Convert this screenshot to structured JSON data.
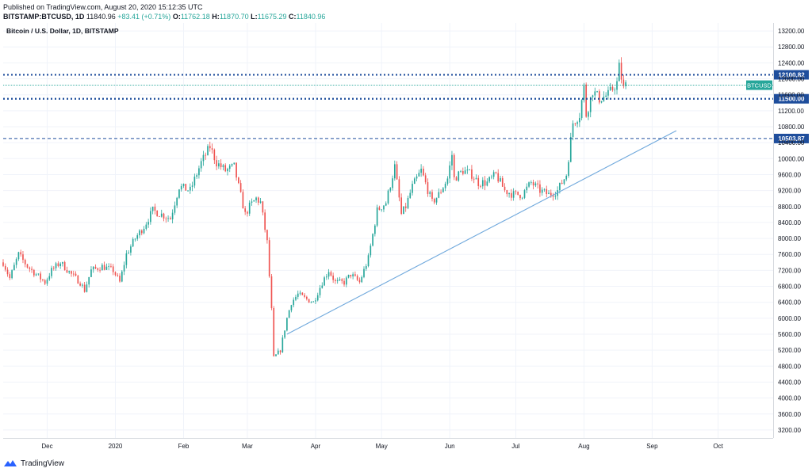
{
  "header": {
    "published": "Published on TradingView.com, August 20, 2020 15:12:35 UTC",
    "symbol": "BITSTAMP:BTCUSD, 1D",
    "last": "11840.96",
    "change": "+83.41 (+0.71%)",
    "o_label": "O:",
    "o": "11762.18",
    "h_label": "H:",
    "h": "11870.70",
    "l_label": "L:",
    "l": "11675.29",
    "c_label": "C:",
    "c": "11840.96"
  },
  "footer": {
    "brand": "TradingView"
  },
  "colors": {
    "up": "#26a69a",
    "down": "#ef5350",
    "level": "#1f4e9c",
    "trend": "#6fa8dc",
    "price": "#26a69a"
  },
  "chart_data": {
    "type": "candlestick",
    "title": "Bitcoin / U.S. Dollar, 1D, BITSTAMP",
    "ylim": [
      3000,
      13400
    ],
    "yticks": [
      3200,
      3600,
      4000,
      4400,
      4800,
      5200,
      5600,
      6000,
      6400,
      6800,
      7200,
      7600,
      8000,
      8400,
      8800,
      9200,
      9600,
      10000,
      10400,
      10800,
      11200,
      11600,
      12000,
      12400,
      12800,
      13200
    ],
    "x_labels": [
      {
        "label": "Dec",
        "date": "2019-12-01"
      },
      {
        "label": "2020",
        "date": "2020-01-01"
      },
      {
        "label": "Feb",
        "date": "2020-02-01"
      },
      {
        "label": "Mar",
        "date": "2020-03-01"
      },
      {
        "label": "Apr",
        "date": "2020-04-01"
      },
      {
        "label": "May",
        "date": "2020-05-01"
      },
      {
        "label": "Jun",
        "date": "2020-06-01"
      },
      {
        "label": "Jul",
        "date": "2020-07-01"
      },
      {
        "label": "Aug",
        "date": "2020-08-01"
      },
      {
        "label": "Sep",
        "date": "2020-09-01"
      },
      {
        "label": "Oct",
        "date": "2020-10-01"
      }
    ],
    "x_range": [
      "2019-11-11",
      "2020-10-26"
    ],
    "close_keypoints": [
      [
        "2019-11-11",
        7400
      ],
      [
        "2019-11-14",
        7000
      ],
      [
        "2019-11-18",
        7600
      ],
      [
        "2019-11-22",
        7300
      ],
      [
        "2019-11-26",
        7100
      ],
      [
        "2019-11-30",
        6900
      ],
      [
        "2019-12-03",
        7200
      ],
      [
        "2019-12-07",
        7400
      ],
      [
        "2019-12-12",
        7100
      ],
      [
        "2019-12-16",
        6900
      ],
      [
        "2019-12-18",
        6700
      ],
      [
        "2019-12-21",
        7200
      ],
      [
        "2019-12-26",
        7300
      ],
      [
        "2019-12-31",
        7200
      ],
      [
        "2020-01-03",
        6900
      ],
      [
        "2020-01-06",
        7600
      ],
      [
        "2020-01-10",
        8000
      ],
      [
        "2020-01-14",
        8300
      ],
      [
        "2020-01-18",
        8700
      ],
      [
        "2020-01-22",
        8600
      ],
      [
        "2020-01-26",
        8500
      ],
      [
        "2020-01-30",
        9300
      ],
      [
        "2020-02-04",
        9200
      ],
      [
        "2020-02-09",
        9900
      ],
      [
        "2020-02-13",
        10300
      ],
      [
        "2020-02-16",
        9900
      ],
      [
        "2020-02-20",
        9700
      ],
      [
        "2020-02-24",
        9800
      ],
      [
        "2020-02-26",
        9300
      ],
      [
        "2020-02-29",
        8600
      ],
      [
        "2020-03-02",
        8800
      ],
      [
        "2020-03-05",
        9000
      ],
      [
        "2020-03-07",
        8900
      ],
      [
        "2020-03-10",
        7900
      ],
      [
        "2020-03-12",
        6200
      ],
      [
        "2020-03-13",
        5000
      ],
      [
        "2020-03-16",
        5200
      ],
      [
        "2020-03-19",
        6000
      ],
      [
        "2020-03-21",
        6400
      ],
      [
        "2020-03-24",
        6600
      ],
      [
        "2020-03-27",
        6500
      ],
      [
        "2020-03-31",
        6400
      ],
      [
        "2020-04-04",
        6900
      ],
      [
        "2020-04-07",
        7200
      ],
      [
        "2020-04-10",
        6900
      ],
      [
        "2020-04-14",
        6900
      ],
      [
        "2020-04-17",
        7100
      ],
      [
        "2020-04-21",
        6900
      ],
      [
        "2020-04-25",
        7500
      ],
      [
        "2020-04-29",
        8700
      ],
      [
        "2020-05-03",
        8900
      ],
      [
        "2020-05-07",
        9800
      ],
      [
        "2020-05-10",
        8600
      ],
      [
        "2020-05-12",
        8800
      ],
      [
        "2020-05-15",
        9300
      ],
      [
        "2020-05-19",
        9700
      ],
      [
        "2020-05-24",
        8900
      ],
      [
        "2020-05-27",
        9100
      ],
      [
        "2020-05-31",
        9500
      ],
      [
        "2020-06-02",
        10100
      ],
      [
        "2020-06-03",
        9500
      ],
      [
        "2020-06-07",
        9700
      ],
      [
        "2020-06-11",
        9600
      ],
      [
        "2020-06-14",
        9400
      ],
      [
        "2020-06-18",
        9400
      ],
      [
        "2020-06-22",
        9600
      ],
      [
        "2020-06-26",
        9200
      ],
      [
        "2020-06-30",
        9100
      ],
      [
        "2020-07-04",
        9100
      ],
      [
        "2020-07-08",
        9400
      ],
      [
        "2020-07-12",
        9200
      ],
      [
        "2020-07-16",
        9100
      ],
      [
        "2020-07-20",
        9200
      ],
      [
        "2020-07-24",
        9600
      ],
      [
        "2020-07-27",
        10900
      ],
      [
        "2020-07-30",
        11100
      ],
      [
        "2020-08-01",
        11800
      ],
      [
        "2020-08-02",
        11100
      ],
      [
        "2020-08-05",
        11700
      ],
      [
        "2020-08-08",
        11500
      ],
      [
        "2020-08-12",
        11600
      ],
      [
        "2020-08-16",
        11900
      ],
      [
        "2020-08-17",
        12300
      ],
      [
        "2020-08-19",
        11750
      ],
      [
        "2020-08-20",
        11841
      ]
    ],
    "horizontal_levels": [
      {
        "value": 12100.82,
        "label": "12100.82",
        "style": "dotted"
      },
      {
        "value": 11500.0,
        "label": "11500.00",
        "style": "dotted"
      },
      {
        "value": 10503.87,
        "label": "10503.87",
        "style": "dashed"
      }
    ],
    "price_line": {
      "value": 11840.96,
      "label": "BTCUSD"
    },
    "trendline": {
      "start": [
        "2020-03-19",
        5600
      ],
      "end": [
        "2020-09-12",
        10700
      ]
    }
  }
}
